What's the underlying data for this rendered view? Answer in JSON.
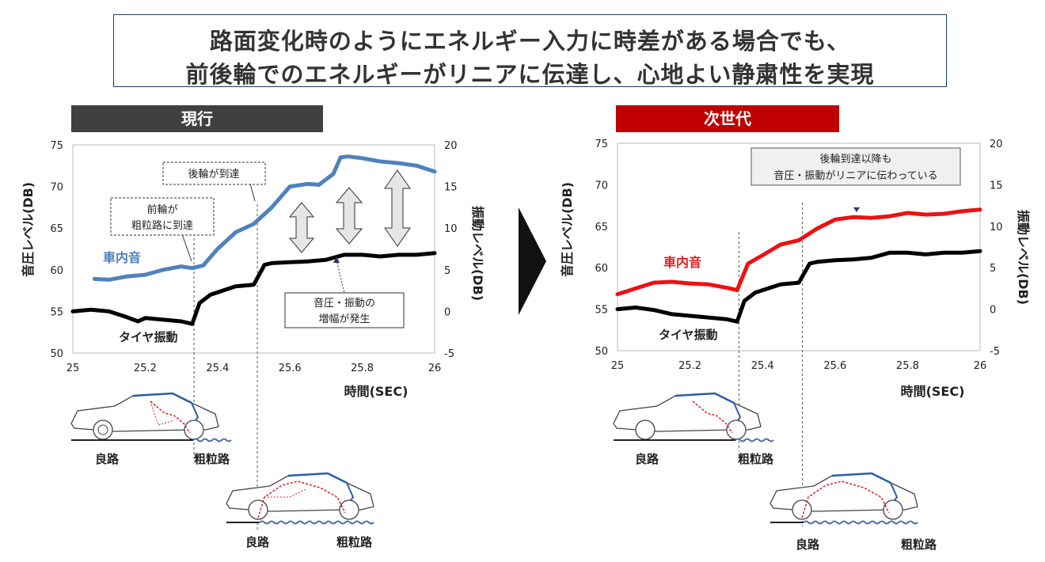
{
  "title": {
    "line1": "路面変化時のようにエネルギー入力に時差がある場合でも、",
    "line2": "前後輪でのエネルギーがリニアに伝達し、心地よい静粛性を実現"
  },
  "colors": {
    "banner_current": "#404040",
    "banner_next": "#c00000",
    "series_noise_current": "#4f81bd",
    "series_noise_next": "#ee1111",
    "series_vibration": "#000000"
  },
  "panels": [
    {
      "banner": "現行",
      "ylabel_left": "音圧レベル(DB)",
      "ylabel_right": "振動レベル(DB)",
      "xlabel": "時間(SEC)",
      "annotations": [
        {
          "text": [
            "後輪が到達"
          ]
        },
        {
          "text": [
            "前輪が",
            "粗粒路に到達"
          ]
        },
        {
          "text": [
            "音圧・振動の",
            "増幅が発生"
          ]
        }
      ],
      "series_labels": {
        "noise": "車内音",
        "vibration": "タイヤ振動"
      },
      "road_labels": {
        "top_left": "良路",
        "top_right": "粗粒路",
        "bottom_left": "良路",
        "bottom_right": "粗粒路"
      }
    },
    {
      "banner": "次世代",
      "ylabel_left": "音圧レベル(DB)",
      "ylabel_right": "振動レベル(DB)",
      "xlabel": "時間(SEC)",
      "annotations": [
        {
          "text": [
            "後輪到達以降も",
            "音圧・振動がリニアに伝わっている"
          ]
        }
      ],
      "series_labels": {
        "noise": "車内音",
        "vibration": "タイヤ振動"
      },
      "road_labels": {
        "top_left": "良路",
        "top_right": "粗粒路",
        "bottom_left": "良路",
        "bottom_right": "粗粒路"
      }
    }
  ],
  "chart_data": [
    {
      "type": "line",
      "title": "現行",
      "xlabel": "時間(SEC)",
      "ylabel": "音圧レベル(DB)",
      "y2label": "振動レベル(DB)",
      "xlim": [
        25,
        26
      ],
      "ylim": [
        50,
        75
      ],
      "y2lim": [
        -5,
        20
      ],
      "xticks": [
        "25",
        "25.2",
        "25.4",
        "25.6",
        "25.8",
        "26"
      ],
      "yticks": [
        "50",
        "55",
        "60",
        "65",
        "70",
        "75"
      ],
      "y2ticks": [
        "-5",
        "0",
        "5",
        "10",
        "15",
        "20"
      ],
      "markers_x": [
        25.335,
        25.51
      ],
      "series": [
        {
          "name": "車内音",
          "axis": "left",
          "x": [
            25.06,
            25.1,
            25.15,
            25.2,
            25.25,
            25.3,
            25.33,
            25.36,
            25.4,
            25.45,
            25.5,
            25.55,
            25.6,
            25.65,
            25.68,
            25.72,
            25.74,
            25.76,
            25.8,
            25.85,
            25.9,
            25.95,
            26.0
          ],
          "y": [
            58.9,
            58.8,
            59.2,
            59.4,
            60.0,
            60.4,
            60.2,
            60.5,
            62.5,
            64.5,
            65.5,
            67.5,
            70.0,
            70.3,
            70.2,
            71.5,
            73.5,
            73.6,
            73.4,
            73.0,
            72.8,
            72.5,
            71.8
          ]
        },
        {
          "name": "タイヤ振動",
          "axis": "left",
          "x": [
            25.0,
            25.05,
            25.1,
            25.15,
            25.18,
            25.2,
            25.25,
            25.3,
            25.33,
            25.35,
            25.38,
            25.45,
            25.5,
            25.53,
            25.55,
            25.6,
            25.65,
            25.7,
            25.75,
            25.8,
            25.85,
            25.9,
            25.95,
            26.0
          ],
          "y": [
            55.0,
            55.2,
            55.0,
            54.3,
            53.8,
            54.2,
            54.0,
            53.8,
            53.5,
            56.0,
            57.0,
            58.0,
            58.2,
            60.6,
            60.8,
            60.9,
            61.0,
            61.2,
            61.8,
            61.8,
            61.6,
            61.8,
            61.8,
            62.0
          ]
        }
      ]
    },
    {
      "type": "line",
      "title": "次世代",
      "xlabel": "時間(SEC)",
      "ylabel": "音圧レベル(DB)",
      "y2label": "振動レベル(DB)",
      "xlim": [
        25,
        26
      ],
      "ylim": [
        50,
        75
      ],
      "y2lim": [
        -5,
        20
      ],
      "xticks": [
        "25",
        "25.2",
        "25.4",
        "25.6",
        "25.8",
        "26"
      ],
      "yticks": [
        "50",
        "55",
        "60",
        "65",
        "70",
        "75"
      ],
      "y2ticks": [
        "-5",
        "0",
        "5",
        "10",
        "15",
        "20"
      ],
      "markers_x": [
        25.335,
        25.51
      ],
      "series": [
        {
          "name": "車内音",
          "axis": "left",
          "x": [
            25.0,
            25.05,
            25.1,
            25.15,
            25.2,
            25.25,
            25.3,
            25.33,
            25.36,
            25.4,
            25.45,
            25.5,
            25.55,
            25.6,
            25.65,
            25.7,
            25.75,
            25.8,
            25.85,
            25.9,
            25.95,
            26.0
          ],
          "y": [
            56.8,
            57.5,
            58.2,
            58.3,
            58.1,
            58.0,
            57.6,
            57.3,
            60.5,
            61.5,
            62.8,
            63.3,
            64.7,
            65.8,
            66.1,
            66.0,
            66.2,
            66.6,
            66.4,
            66.5,
            66.8,
            67.0
          ]
        },
        {
          "name": "タイヤ振動",
          "axis": "left",
          "x": [
            25.0,
            25.05,
            25.1,
            25.15,
            25.2,
            25.25,
            25.3,
            25.33,
            25.35,
            25.38,
            25.45,
            25.5,
            25.53,
            25.55,
            25.6,
            25.65,
            25.7,
            25.75,
            25.8,
            25.85,
            25.9,
            25.95,
            26.0
          ],
          "y": [
            55.0,
            55.2,
            54.9,
            54.4,
            54.2,
            54.0,
            53.8,
            53.5,
            56.0,
            57.0,
            58.0,
            58.2,
            60.5,
            60.7,
            60.9,
            61.0,
            61.2,
            61.8,
            61.8,
            61.6,
            61.8,
            61.8,
            62.0
          ]
        }
      ]
    }
  ]
}
